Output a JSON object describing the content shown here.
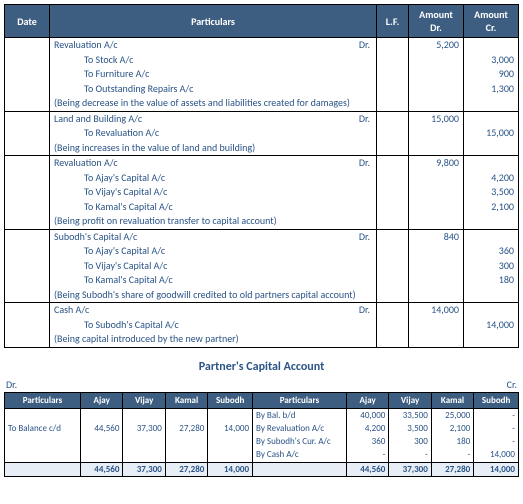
{
  "journal": {
    "headers": {
      "date": "Date",
      "particulars": "Particulars",
      "lf": "L.F.",
      "dr": "Amount Dr.",
      "cr": "Amount Cr."
    },
    "col_widths": [
      "45px",
      "auto",
      "32px",
      "55px",
      "55px"
    ],
    "entries": [
      {
        "lines": [
          {
            "text": "Revaluation A/c",
            "dr_mark": true,
            "dr": "5,200"
          },
          {
            "text": "To Stock A/c",
            "indent": 1,
            "cr": "3,000"
          },
          {
            "text": "To Furniture A/c",
            "indent": 1,
            "cr": "900"
          },
          {
            "text": "To Outstanding Repairs A/c",
            "indent": 1,
            "cr": "1,300"
          }
        ],
        "narration": "(Being decrease in the value of assets and liabilities created for damages)"
      },
      {
        "lines": [
          {
            "text": "Land and Building A/c",
            "dr_mark": true,
            "dr": "15,000"
          },
          {
            "text": "To Revaluation A/c",
            "indent": 1,
            "cr": "15,000"
          }
        ],
        "narration": "(Being increases in the value of land and building)"
      },
      {
        "lines": [
          {
            "text": "Revaluation A/c",
            "dr_mark": true,
            "dr": "9,800"
          },
          {
            "text": "To Ajay's Capital A/c",
            "indent": 1,
            "cr": "4,200"
          },
          {
            "text": "To Vijay's Capital A/c",
            "indent": 1,
            "cr": "3,500"
          },
          {
            "text": "To Kamal's Capital A/c",
            "indent": 1,
            "cr": "2,100"
          }
        ],
        "narration": "(Being profit on revaluation transfer to capital account)"
      },
      {
        "lines": [
          {
            "text": "Subodh's Capital A/c",
            "dr_mark": true,
            "dr": "840"
          },
          {
            "text": "To Ajay's Capital A/c",
            "indent": 1,
            "cr": "360"
          },
          {
            "text": "To Vijay's Capital A/c",
            "indent": 1,
            "cr": "300"
          },
          {
            "text": "To Kamal's Capital A/c",
            "indent": 1,
            "cr": "180"
          }
        ],
        "narration": "(Being Subodh's share of goodwill credited to old partners capital account)"
      },
      {
        "lines": [
          {
            "text": "Cash A/c",
            "dr_mark": true,
            "dr": "14,000"
          },
          {
            "text": "To Subodh's Capital A/c",
            "indent": 1,
            "cr": "14,000"
          }
        ],
        "narration": "(Being capital introduced by the new partner)"
      }
    ]
  },
  "capital": {
    "title": "Partner's Capital Account",
    "dr_label": "Dr.",
    "cr_label": "Cr.",
    "headers": {
      "particulars": "Particulars",
      "partners": [
        "Ajay",
        "Vijay",
        "Kamal",
        "Subodh"
      ]
    },
    "col_widths": [
      "68px",
      "38px",
      "38px",
      "38px",
      "40px",
      "84px",
      "38px",
      "38px",
      "38px",
      "40px"
    ],
    "left": {
      "rows": [
        {
          "label": "",
          "vals": [
            "",
            "",
            "",
            ""
          ]
        },
        {
          "label": "To Balance c/d",
          "vals": [
            "44,560",
            "37,300",
            "27,280",
            "14,000"
          ]
        },
        {
          "label": "",
          "vals": [
            "",
            "",
            "",
            ""
          ]
        },
        {
          "label": "",
          "vals": [
            "",
            "",
            "",
            ""
          ]
        }
      ],
      "total": [
        "44,560",
        "37,300",
        "27,280",
        "14,000"
      ]
    },
    "right": {
      "rows": [
        {
          "label": "By Bal. b/d",
          "vals": [
            "40,000",
            "33,500",
            "25,000",
            "-"
          ]
        },
        {
          "label": "By Revaluation A/c",
          "vals": [
            "4,200",
            "3,500",
            "2,100",
            "-"
          ]
        },
        {
          "label": "By Subodh's Cur. A/c",
          "vals": [
            "360",
            "300",
            "180",
            "-"
          ]
        },
        {
          "label": "By Cash A/c",
          "vals": [
            "-",
            "-",
            "-",
            "14,000"
          ]
        }
      ],
      "total": [
        "44,560",
        "37,300",
        "27,280",
        "14,000"
      ]
    }
  }
}
